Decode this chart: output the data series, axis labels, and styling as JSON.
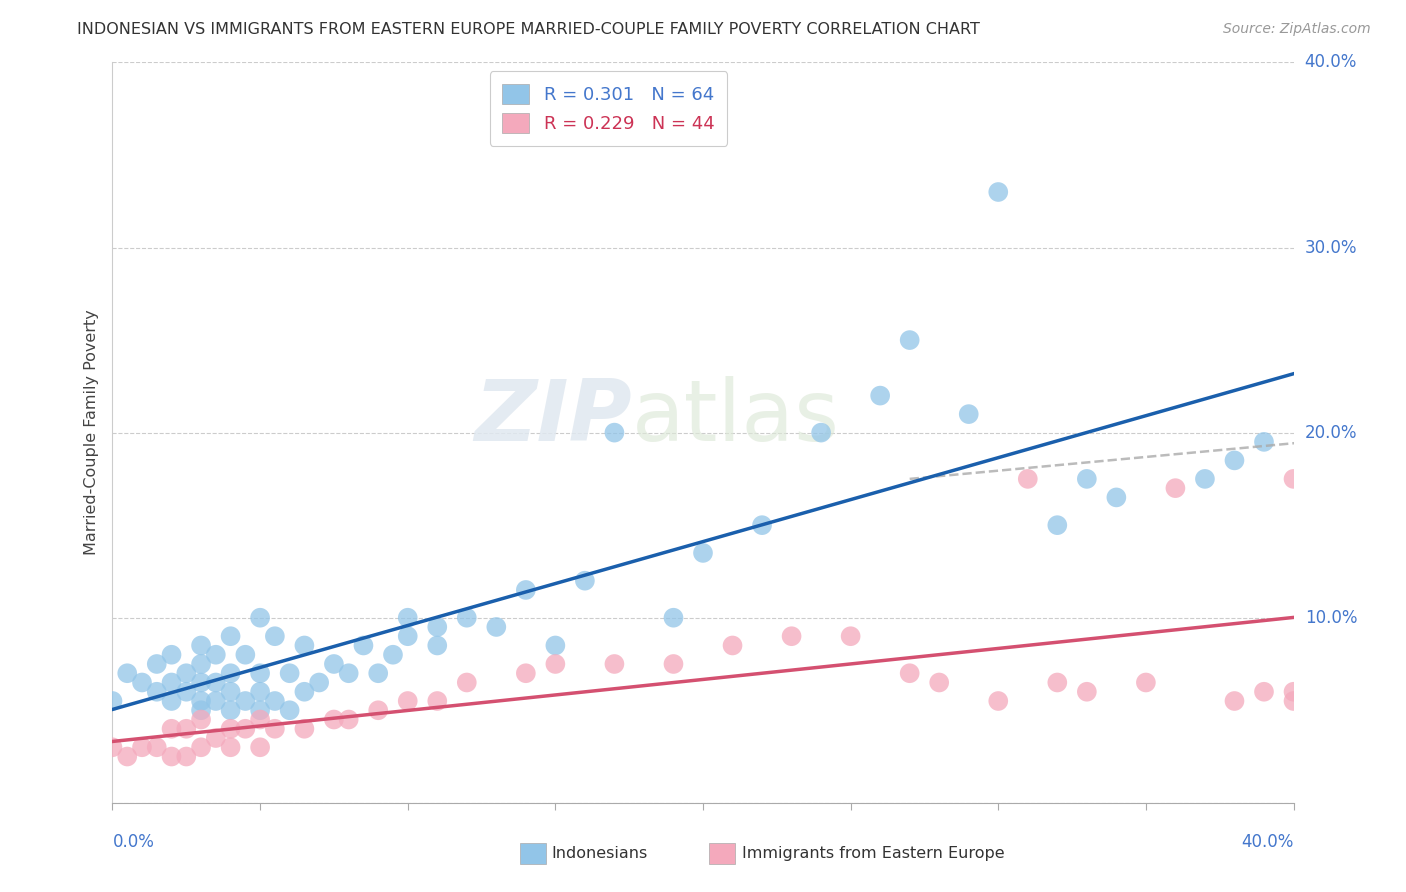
{
  "title": "INDONESIAN VS IMMIGRANTS FROM EASTERN EUROPE MARRIED-COUPLE FAMILY POVERTY CORRELATION CHART",
  "source": "Source: ZipAtlas.com",
  "ylabel": "Married-Couple Family Poverty",
  "legend_r1": "R = 0.301",
  "legend_n1": "N = 64",
  "legend_r2": "R = 0.229",
  "legend_n2": "N = 44",
  "color_indonesian": "#92c5e8",
  "color_eastern_europe": "#f4a9bc",
  "color_trendline_blue": "#1a5fac",
  "color_trendline_pink": "#d45070",
  "color_dashed": "#aaaaaa",
  "watermark_zip": "ZIP",
  "watermark_atlas": "atlas",
  "indonesian_x": [
    0.0,
    0.005,
    0.01,
    0.015,
    0.015,
    0.02,
    0.02,
    0.02,
    0.025,
    0.025,
    0.03,
    0.03,
    0.03,
    0.03,
    0.03,
    0.035,
    0.035,
    0.035,
    0.04,
    0.04,
    0.04,
    0.04,
    0.045,
    0.045,
    0.05,
    0.05,
    0.05,
    0.05,
    0.055,
    0.055,
    0.06,
    0.06,
    0.065,
    0.065,
    0.07,
    0.075,
    0.08,
    0.085,
    0.09,
    0.095,
    0.1,
    0.1,
    0.11,
    0.11,
    0.12,
    0.13,
    0.14,
    0.15,
    0.16,
    0.17,
    0.19,
    0.2,
    0.22,
    0.24,
    0.26,
    0.27,
    0.29,
    0.3,
    0.32,
    0.33,
    0.34,
    0.37,
    0.38,
    0.39
  ],
  "indonesian_y": [
    0.055,
    0.07,
    0.065,
    0.06,
    0.075,
    0.055,
    0.065,
    0.08,
    0.06,
    0.07,
    0.05,
    0.055,
    0.065,
    0.075,
    0.085,
    0.055,
    0.065,
    0.08,
    0.05,
    0.06,
    0.07,
    0.09,
    0.055,
    0.08,
    0.05,
    0.06,
    0.07,
    0.1,
    0.055,
    0.09,
    0.05,
    0.07,
    0.06,
    0.085,
    0.065,
    0.075,
    0.07,
    0.085,
    0.07,
    0.08,
    0.09,
    0.1,
    0.085,
    0.095,
    0.1,
    0.095,
    0.115,
    0.085,
    0.12,
    0.2,
    0.1,
    0.135,
    0.15,
    0.2,
    0.22,
    0.25,
    0.21,
    0.33,
    0.15,
    0.175,
    0.165,
    0.175,
    0.185,
    0.195
  ],
  "eastern_x": [
    0.0,
    0.005,
    0.01,
    0.015,
    0.02,
    0.02,
    0.025,
    0.025,
    0.03,
    0.03,
    0.035,
    0.04,
    0.04,
    0.045,
    0.05,
    0.05,
    0.055,
    0.065,
    0.075,
    0.08,
    0.09,
    0.1,
    0.11,
    0.12,
    0.14,
    0.15,
    0.17,
    0.19,
    0.21,
    0.23,
    0.25,
    0.27,
    0.28,
    0.3,
    0.31,
    0.32,
    0.33,
    0.35,
    0.36,
    0.38,
    0.39,
    0.4,
    0.4,
    0.4
  ],
  "eastern_y": [
    0.03,
    0.025,
    0.03,
    0.03,
    0.025,
    0.04,
    0.025,
    0.04,
    0.03,
    0.045,
    0.035,
    0.03,
    0.04,
    0.04,
    0.03,
    0.045,
    0.04,
    0.04,
    0.045,
    0.045,
    0.05,
    0.055,
    0.055,
    0.065,
    0.07,
    0.075,
    0.075,
    0.075,
    0.085,
    0.09,
    0.09,
    0.07,
    0.065,
    0.055,
    0.175,
    0.065,
    0.06,
    0.065,
    0.17,
    0.055,
    0.06,
    0.06,
    0.055,
    0.175
  ],
  "xlim": [
    0.0,
    0.4
  ],
  "ylim": [
    0.0,
    0.4
  ],
  "ytick_positions": [
    0.0,
    0.1,
    0.2,
    0.3,
    0.4
  ],
  "ytick_labels": [
    "",
    "10.0%",
    "20.0%",
    "30.0%",
    "40.0%"
  ],
  "background_color": "#ffffff",
  "grid_color": "#cccccc",
  "plot_bg_color": "#ffffff"
}
